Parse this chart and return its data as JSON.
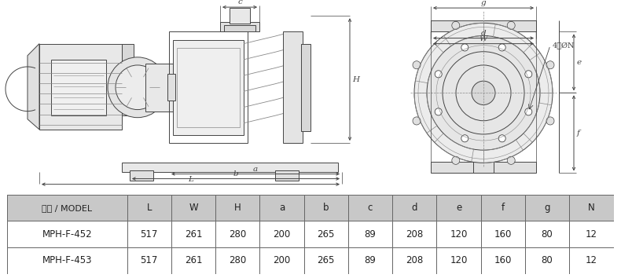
{
  "table_header": [
    "型式 / MODEL",
    "L",
    "W",
    "H",
    "a",
    "b",
    "c",
    "d",
    "e",
    "f",
    "g",
    "N"
  ],
  "table_rows": [
    [
      "MPH-F-452",
      "517",
      "261",
      "280",
      "200",
      "265",
      "89",
      "208",
      "120",
      "160",
      "80",
      "12"
    ],
    [
      "MPH-F-453",
      "517",
      "261",
      "280",
      "200",
      "265",
      "89",
      "208",
      "120",
      "160",
      "80",
      "12"
    ]
  ],
  "header_bg": "#c8c8c8",
  "row_bg": "#ffffff",
  "border_color": "#666666",
  "text_color": "#222222",
  "header_text_color": "#222222",
  "fig_bg": "#ffffff",
  "lc": "#444444",
  "lc_light": "#888888",
  "lc_dim": "#555555"
}
